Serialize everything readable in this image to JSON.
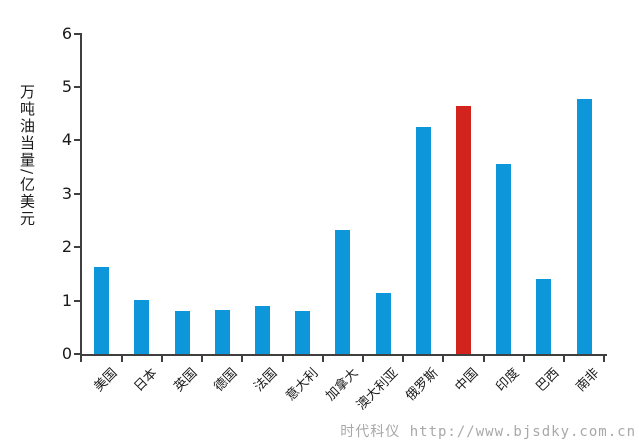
{
  "chart_data": {
    "type": "bar",
    "title": "",
    "xlabel": "",
    "ylabel": "万吨油当量/亿美元",
    "ylim": [
      0,
      6
    ],
    "yticks": [
      0,
      1,
      2,
      3,
      4,
      5,
      6
    ],
    "grid": false,
    "legend_position": "none",
    "categories": [
      "美国",
      "日本",
      "英国",
      "德国",
      "法国",
      "意大利",
      "加拿大",
      "澳大利亚",
      "俄罗斯",
      "中国",
      "印度",
      "巴西",
      "南非"
    ],
    "values": [
      1.63,
      1.01,
      0.81,
      0.83,
      0.89,
      0.8,
      2.32,
      1.15,
      4.26,
      4.64,
      3.56,
      1.4,
      4.78
    ],
    "highlight_category": "中国",
    "bar_color": "#0d96d9",
    "highlight_color": "#d2231c"
  },
  "colors": {
    "axis": "#3f3f3f",
    "text": "#1a1a1a",
    "background": "#ffffff",
    "watermark": "#a8a8a8"
  },
  "watermark": {
    "text": "时代科仪 http://www.bjsdky.com.cn"
  }
}
